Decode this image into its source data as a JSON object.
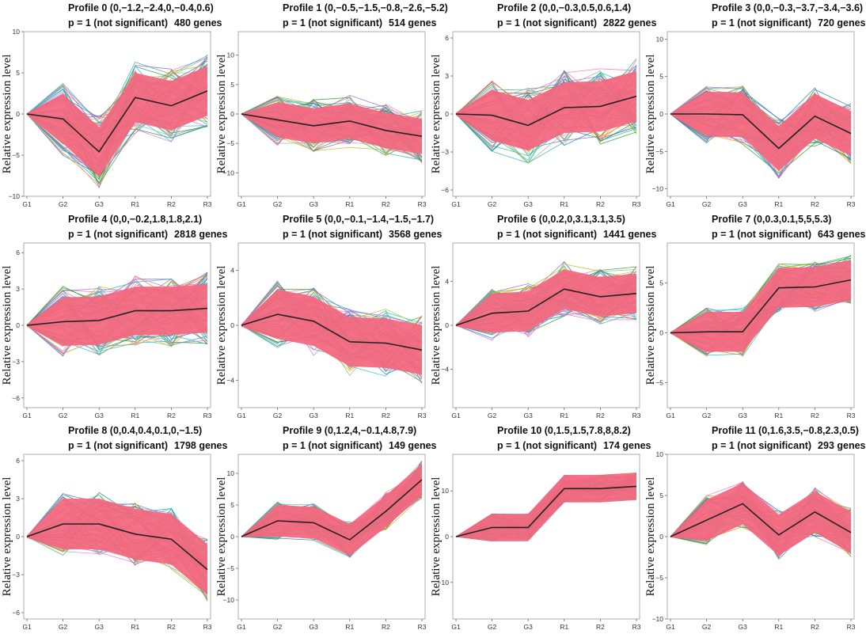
{
  "figure": {
    "ylabel": "Relative expression level",
    "x_categories": [
      "G1",
      "G2",
      "G3",
      "R1",
      "R2",
      "R3"
    ]
  },
  "colors": {
    "band": "#f4667e",
    "mean_line": "#222222",
    "profile_lines": [
      "#e377c2",
      "#17becf",
      "#2ca02c",
      "#9467bd",
      "#bcbd22",
      "#1f77b4",
      "#ff7f0e",
      "#8fbc8f",
      "#da70d6",
      "#20b2aa"
    ]
  },
  "chart_data": [
    {
      "type": "line",
      "title": "Profile 0 (0,−1.2,−2.4,0,−0.4,0.6)",
      "subtitle": "p = 1 (not significant)",
      "genes": "480 genes",
      "yticks": [
        10,
        5,
        0,
        -5,
        -10
      ],
      "ylim": [
        -10,
        10
      ],
      "mean": [
        0,
        -0.6,
        -4.6,
        2.0,
        1.0,
        2.8
      ],
      "band_width": 3,
      "spread": 4.5
    },
    {
      "type": "line",
      "title": "Profile 1 (0,−0.5,−1.5,−0.8,−2.6,−5.2)",
      "subtitle": "p = 1 (not significant)",
      "genes": "514 genes",
      "yticks": [
        10,
        5,
        0,
        -5,
        -10
      ],
      "ylim": [
        -14,
        14
      ],
      "mean": [
        0,
        -1.0,
        -2.0,
        -1.2,
        -2.8,
        -3.8
      ],
      "band_width": 3,
      "spread": 4.5
    },
    {
      "type": "line",
      "title": "Profile 2 (0,0,−0.3,0.5,0.6,1.4)",
      "subtitle": "p = 1 (not significant)",
      "genes": "2822 genes",
      "yticks": [
        6,
        3,
        0,
        -3,
        -6
      ],
      "ylim": [
        -6.5,
        6.5
      ],
      "mean": [
        0,
        -0.1,
        -0.9,
        0.5,
        0.6,
        1.4
      ],
      "band_width": 2,
      "spread": 3
    },
    {
      "type": "line",
      "title": "Profile 3 (0,0,−0.3,−3.7,−3.4,−3.6)",
      "subtitle": "p = 1 (not significant)",
      "genes": "720 genes",
      "yticks": [
        10,
        5,
        0,
        -5,
        -10
      ],
      "ylim": [
        -11,
        11
      ],
      "mean": [
        0,
        0,
        -0.1,
        -4.6,
        -0.3,
        -2.6
      ],
      "band_width": 3,
      "spread": 4
    },
    {
      "type": "line",
      "title": "Profile 4 (0,0,−0.2,1.8,1.8,2.1)",
      "subtitle": "p = 1 (not significant)",
      "genes": "2818 genes",
      "yticks": [
        6,
        3,
        0,
        -3,
        -6
      ],
      "ylim": [
        -6.8,
        6.8
      ],
      "mean": [
        0,
        0.3,
        0.4,
        1.2,
        1.2,
        1.4
      ],
      "band_width": 2,
      "spread": 3
    },
    {
      "type": "line",
      "title": "Profile 5 (0,0,−0.1,−1.4,−1.5,−1.7)",
      "subtitle": "p = 1 (not significant)",
      "genes": "3568 genes",
      "yticks": [
        4,
        0,
        -4
      ],
      "ylim": [
        -6,
        6
      ],
      "mean": [
        0,
        0.8,
        0.3,
        -1.2,
        -1.3,
        -1.8
      ],
      "band_width": 1.8,
      "spread": 2.5
    },
    {
      "type": "line",
      "title": "Profile 6 (0,0.2,0,3.1,3.1,3.5)",
      "subtitle": "p = 1 (not significant)",
      "genes": "1441 genes",
      "yticks": [
        4,
        0,
        -4
      ],
      "ylim": [
        -7.5,
        7.5
      ],
      "mean": [
        0,
        1.1,
        1.3,
        3.3,
        2.6,
        2.9
      ],
      "band_width": 1.8,
      "spread": 2.5
    },
    {
      "type": "line",
      "title": "Profile 7 (0,0.3,0.1,5,5,5.3)",
      "subtitle": "p = 1 (not significant)",
      "genes": "643 genes",
      "yticks": [
        5,
        0,
        -5
      ],
      "ylim": [
        -7.5,
        9
      ],
      "mean": [
        0,
        0.1,
        0.1,
        4.5,
        4.6,
        5.3
      ],
      "band_width": 2,
      "spread": 2.5
    },
    {
      "type": "line",
      "title": "Profile 8 (0,0.4,0.4,0.1,0,−1.5)",
      "subtitle": "p = 1 (not significant)",
      "genes": "1798 genes",
      "yticks": [
        6,
        3,
        0,
        -3,
        -6
      ],
      "ylim": [
        -6.5,
        6.5
      ],
      "mean": [
        0,
        1.0,
        1.0,
        0.2,
        -0.2,
        -2.6
      ],
      "band_width": 2,
      "spread": 2.5
    },
    {
      "type": "line",
      "title": "Profile 9 (0,1.2,4,−0.1,4.8,7.9)",
      "subtitle": "p = 1 (not significant)",
      "genes": "149 genes",
      "yticks": [
        10,
        5,
        0,
        -5,
        -10
      ],
      "ylim": [
        -13,
        13
      ],
      "mean": [
        0,
        2.5,
        2.2,
        -0.5,
        4.0,
        9.0
      ],
      "band_width": 2.5,
      "spread": 3
    },
    {
      "type": "line",
      "title": "Profile 10 (0,1.5,1.5,7.8,8,8.2)",
      "subtitle": "p = 1 (not significant)",
      "genes": "174 genes",
      "yticks": [
        10,
        0,
        -10
      ],
      "ylim": [
        -18,
        18
      ],
      "mean": [
        0,
        2.0,
        2.0,
        10.5,
        10.5,
        11.0
      ],
      "band_width": 3,
      "spread": 3
    },
    {
      "type": "line",
      "title": "Profile 11 (0,1.6,3.5,−0.8,2.3,0.5)",
      "subtitle": "p = 1 (not significant)",
      "genes": "293 genes",
      "yticks": [
        10,
        5,
        0,
        -5,
        -10
      ],
      "ylim": [
        -10,
        10
      ],
      "mean": [
        0,
        2.0,
        4.0,
        0.2,
        3.0,
        0.5
      ],
      "band_width": 2.5,
      "spread": 3
    }
  ]
}
